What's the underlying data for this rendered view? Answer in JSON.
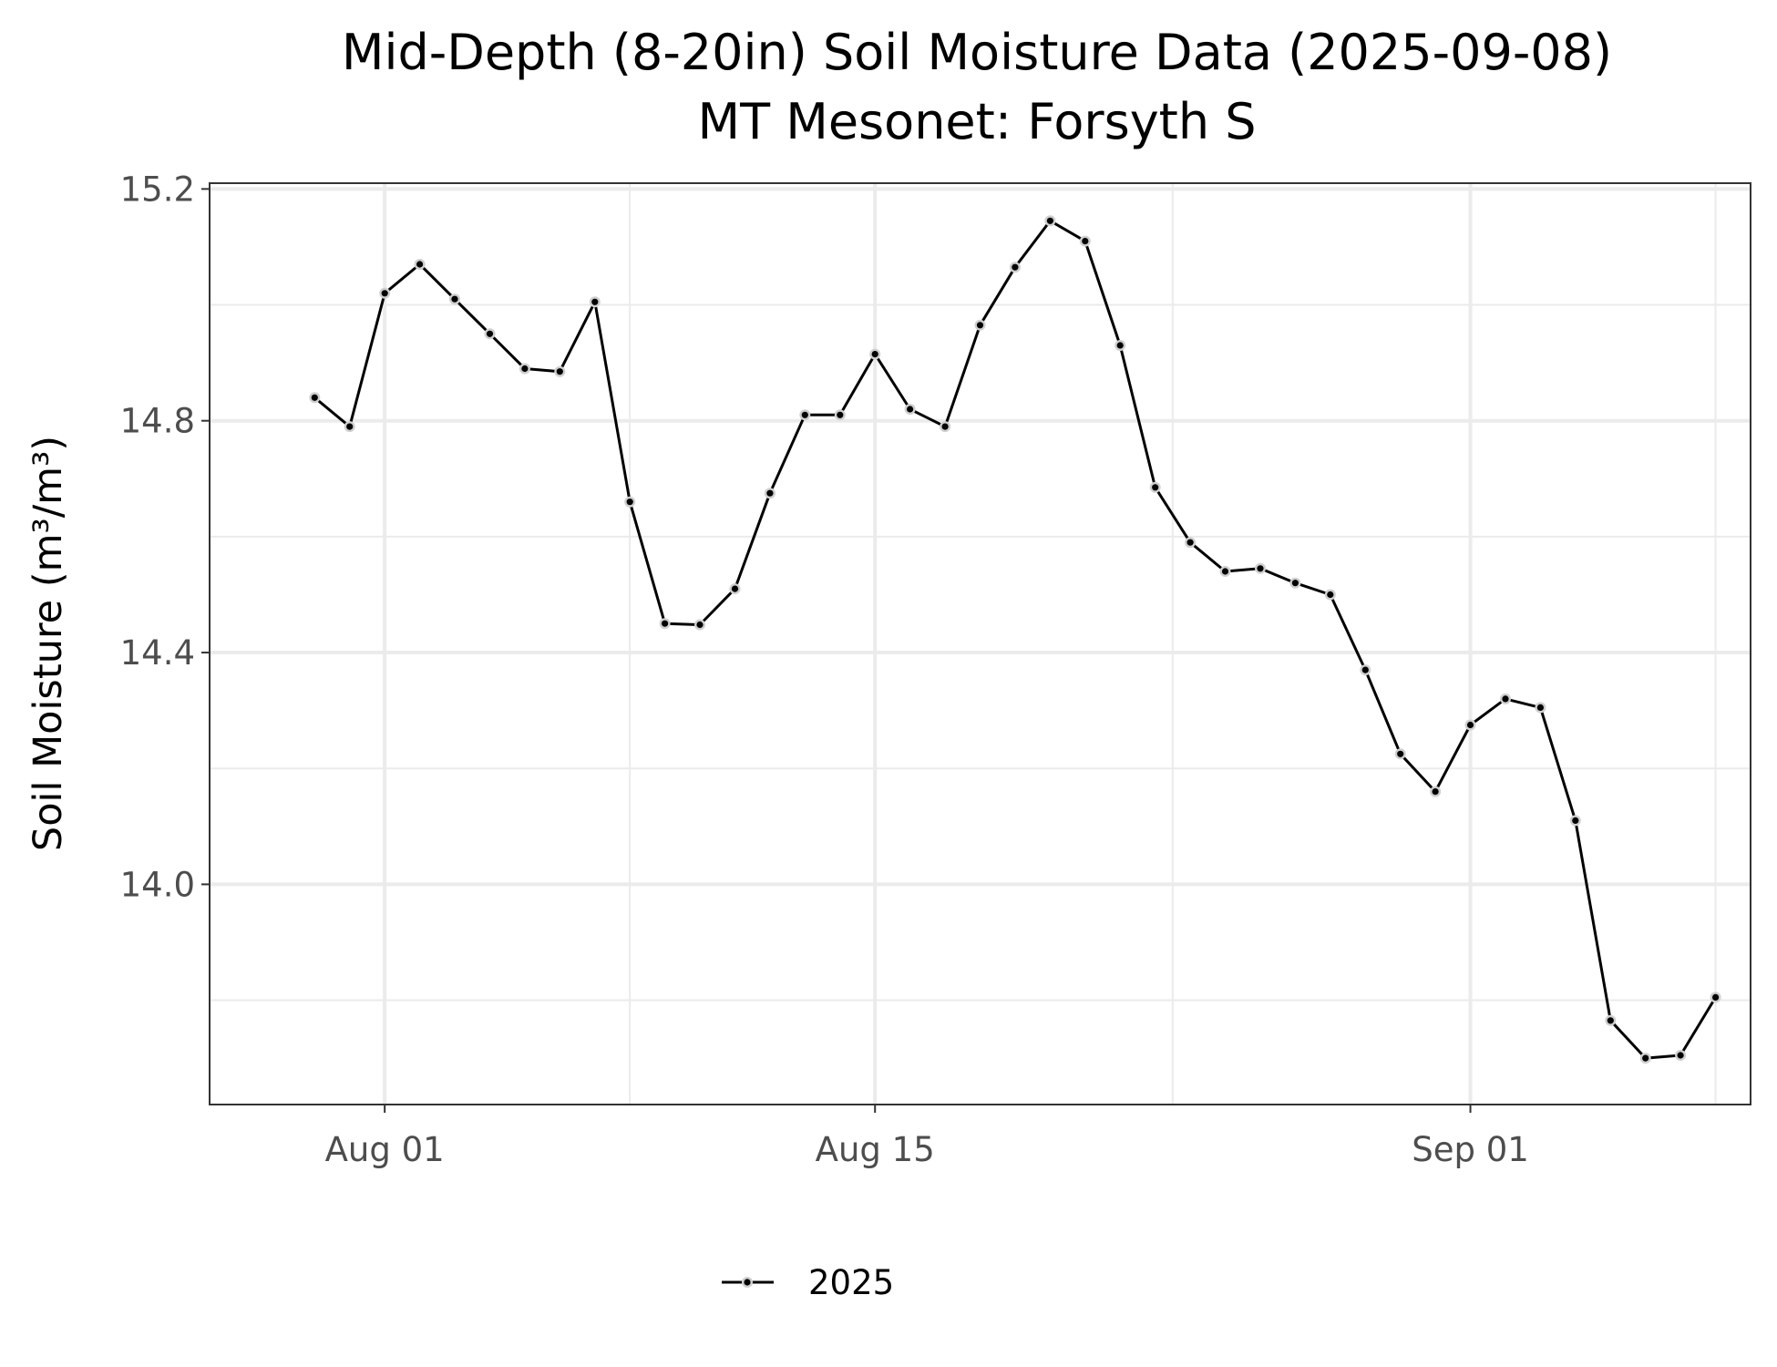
{
  "chart_data": {
    "type": "line",
    "title": "Mid-Depth (8-20in) Soil Moisture Data (2025-09-08)",
    "subtitle": "MT Mesonet: Forsyth S",
    "xlabel": "",
    "ylabel": "Soil Moisture (m³/m³)",
    "x_ticks": [
      "Aug 01",
      "Aug 15",
      "Sep 01"
    ],
    "y_ticks": [
      "14.0",
      "14.4",
      "14.8",
      "15.2"
    ],
    "ylim": [
      13.62,
      15.21
    ],
    "xlim": [
      "2025-07-27",
      "2025-09-09"
    ],
    "grid": true,
    "legend_position": "bottom",
    "series": [
      {
        "name": "2025",
        "color": "#000000",
        "x": [
          "2025-07-30",
          "2025-07-31",
          "2025-08-01",
          "2025-08-02",
          "2025-08-03",
          "2025-08-04",
          "2025-08-05",
          "2025-08-06",
          "2025-08-07",
          "2025-08-08",
          "2025-08-09",
          "2025-08-10",
          "2025-08-11",
          "2025-08-12",
          "2025-08-13",
          "2025-08-14",
          "2025-08-15",
          "2025-08-16",
          "2025-08-17",
          "2025-08-18",
          "2025-08-19",
          "2025-08-20",
          "2025-08-21",
          "2025-08-22",
          "2025-08-23",
          "2025-08-24",
          "2025-08-25",
          "2025-08-26",
          "2025-08-27",
          "2025-08-28",
          "2025-08-29",
          "2025-08-30",
          "2025-08-31",
          "2025-09-01",
          "2025-09-02",
          "2025-09-03",
          "2025-09-04",
          "2025-09-05",
          "2025-09-06",
          "2025-09-07",
          "2025-09-08"
        ],
        "values": [
          14.84,
          14.79,
          15.02,
          15.07,
          15.01,
          14.95,
          14.89,
          14.885,
          15.005,
          14.66,
          14.45,
          14.448,
          14.51,
          14.675,
          14.81,
          14.81,
          14.915,
          14.82,
          14.79,
          14.965,
          15.065,
          15.145,
          15.11,
          14.93,
          14.685,
          14.59,
          14.54,
          14.545,
          14.52,
          14.5,
          14.37,
          14.225,
          14.16,
          14.275,
          14.32,
          14.305,
          14.11,
          13.765,
          13.7,
          13.705,
          13.805
        ]
      }
    ]
  }
}
